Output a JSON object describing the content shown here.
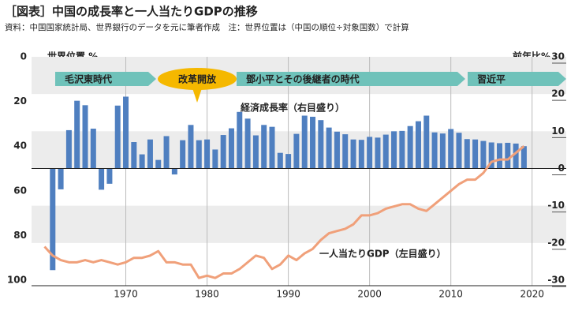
{
  "chart_data": {
    "type": "bar_line",
    "title": "［図表］中国の成長率と一人当たりGDPの推移",
    "subtitle": "資料：中国国家統計局、世界銀行のデータを元に筆者作成　注：世界位置は（中国の順位÷対象国数）で計算",
    "ylabel": "世界位置 %",
    "y2label": "前年比%",
    "ylim": [
      0,
      100
    ],
    "yticks": [
      0,
      20,
      40,
      60,
      80,
      100
    ],
    "y_inverted": true,
    "y2lim": [
      30,
      -30
    ],
    "y2ticks": [
      30,
      20,
      10,
      0,
      -10,
      -20,
      -30
    ],
    "xlim": [
      1958.4,
      2024.2
    ],
    "xticks": [
      1970,
      1980,
      1990,
      2000,
      2010,
      2020
    ],
    "grid": true,
    "series": [
      {
        "name": "経済成長率（右目盛り）",
        "type": "bar",
        "axis": "y2",
        "color": "#4f7fc0",
        "x": [
          1961,
          1962,
          1963,
          1964,
          1965,
          1966,
          1967,
          1968,
          1969,
          1970,
          1971,
          1972,
          1973,
          1974,
          1975,
          1976,
          1977,
          1978,
          1979,
          1980,
          1981,
          1982,
          1983,
          1984,
          1985,
          1986,
          1987,
          1988,
          1989,
          1990,
          1991,
          1992,
          1993,
          1994,
          1995,
          1996,
          1997,
          1998,
          1999,
          2000,
          2001,
          2002,
          2003,
          2004,
          2005,
          2006,
          2007,
          2008,
          2009,
          2010,
          2011,
          2012,
          2013,
          2014,
          2015,
          2016,
          2017,
          2018,
          2019
        ],
        "values": [
          -27.3,
          -5.6,
          10.3,
          18.2,
          17.0,
          10.7,
          -5.7,
          -4.1,
          16.9,
          19.3,
          7.1,
          3.8,
          7.8,
          2.3,
          8.7,
          -1.6,
          7.6,
          11.7,
          7.6,
          7.8,
          5.1,
          9.0,
          10.8,
          15.2,
          13.4,
          8.9,
          11.7,
          11.2,
          4.2,
          3.9,
          9.3,
          14.2,
          13.9,
          13.0,
          11.0,
          9.9,
          9.2,
          7.8,
          7.7,
          8.5,
          8.3,
          9.1,
          10.0,
          10.1,
          11.4,
          12.7,
          14.2,
          9.7,
          9.4,
          10.6,
          9.6,
          7.9,
          7.8,
          7.4,
          7.0,
          6.8,
          6.9,
          6.7,
          6.0
        ]
      },
      {
        "name": "一人当たりGDP（左目盛り）",
        "type": "line",
        "axis": "y",
        "color": "#f0a07a",
        "x": [
          1960,
          1961,
          1962,
          1963,
          1964,
          1965,
          1966,
          1967,
          1968,
          1969,
          1970,
          1971,
          1972,
          1973,
          1974,
          1975,
          1976,
          1977,
          1978,
          1979,
          1980,
          1981,
          1982,
          1983,
          1984,
          1985,
          1986,
          1987,
          1988,
          1989,
          1990,
          1991,
          1992,
          1993,
          1994,
          1995,
          1996,
          1997,
          1998,
          1999,
          2000,
          2001,
          2002,
          2003,
          2004,
          2005,
          2006,
          2007,
          2008,
          2009,
          2010,
          2011,
          2012,
          2013,
          2014,
          2015,
          2016,
          2017,
          2018,
          2019
        ],
        "values": [
          85,
          89,
          91,
          92,
          92,
          91,
          92,
          91,
          92,
          93,
          92,
          90,
          90,
          89,
          87,
          92,
          92,
          93,
          93,
          99,
          98,
          99,
          97,
          97,
          95,
          92,
          89,
          90,
          95,
          93,
          89,
          91,
          88,
          86,
          82,
          79,
          78,
          77,
          75,
          71,
          71,
          70,
          68,
          67,
          66,
          66,
          68,
          69,
          66,
          63,
          60,
          57,
          55,
          55,
          52,
          47,
          46,
          46,
          43,
          40
        ]
      }
    ],
    "annotations": [
      "毛沢東時代",
      "改革開放",
      "鄧小平とその後継者の時代",
      "習近平"
    ]
  }
}
